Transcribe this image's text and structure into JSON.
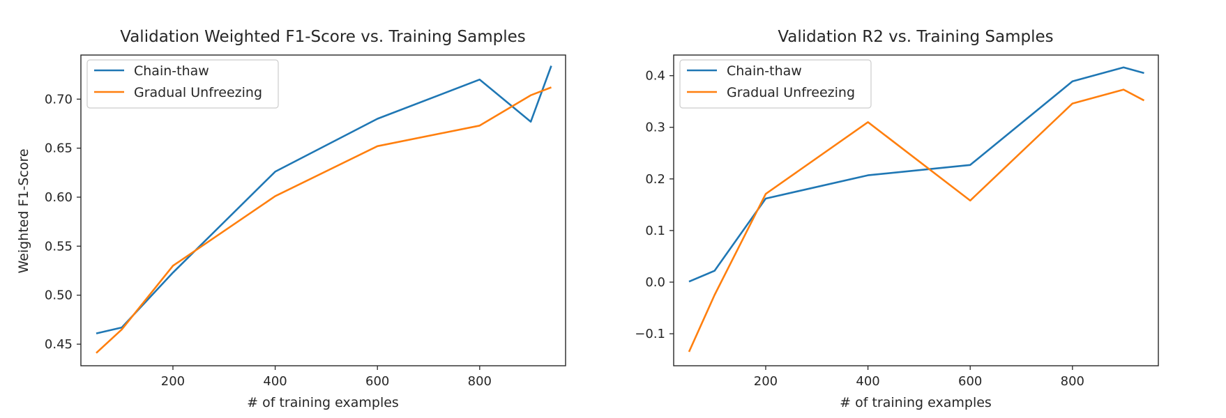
{
  "chart_data": [
    {
      "type": "line",
      "title": "Validation Weighted F1-Score vs. Training Samples",
      "xlabel": "# of training examples",
      "ylabel": "Weighted F1-Score",
      "xlim": [
        20,
        968
      ],
      "ylim": [
        0.428,
        0.745
      ],
      "xticks": [
        200,
        400,
        600,
        800
      ],
      "xtick_labels": [
        "200",
        "400",
        "600",
        "800"
      ],
      "yticks": [
        0.45,
        0.5,
        0.55,
        0.6,
        0.65,
        0.7
      ],
      "ytick_labels": [
        "0.45",
        "0.50",
        "0.55",
        "0.60",
        "0.65",
        "0.70"
      ],
      "grid": false,
      "legend_position": "top-left",
      "series": [
        {
          "name": "Chain-thaw",
          "color": "#1f77b4",
          "x": [
            50,
            100,
            200,
            400,
            600,
            800,
            900,
            940
          ],
          "values": [
            0.461,
            0.467,
            0.523,
            0.626,
            0.68,
            0.72,
            0.677,
            0.734
          ]
        },
        {
          "name": "Gradual Unfreezing",
          "color": "#ff7f0e",
          "x": [
            50,
            100,
            200,
            400,
            600,
            800,
            900,
            940
          ],
          "values": [
            0.441,
            0.465,
            0.53,
            0.601,
            0.652,
            0.673,
            0.704,
            0.712
          ]
        }
      ]
    },
    {
      "type": "line",
      "title": "Validation R2 vs. Training Samples",
      "xlabel": "# of training examples",
      "ylabel": "",
      "xlim": [
        20,
        968
      ],
      "ylim": [
        -0.162,
        0.44
      ],
      "xticks": [
        200,
        400,
        600,
        800
      ],
      "xtick_labels": [
        "200",
        "400",
        "600",
        "800"
      ],
      "yticks": [
        -0.1,
        0.0,
        0.1,
        0.2,
        0.3,
        0.4
      ],
      "ytick_labels": [
        "−0.1",
        "0.0",
        "0.1",
        "0.2",
        "0.3",
        "0.4"
      ],
      "grid": false,
      "legend_position": "top-left",
      "series": [
        {
          "name": "Chain-thaw",
          "color": "#1f77b4",
          "x": [
            50,
            100,
            200,
            400,
            600,
            800,
            900,
            940
          ],
          "values": [
            0.001,
            0.022,
            0.162,
            0.207,
            0.227,
            0.389,
            0.416,
            0.405
          ]
        },
        {
          "name": "Gradual Unfreezing",
          "color": "#ff7f0e",
          "x": [
            50,
            100,
            200,
            400,
            600,
            800,
            900,
            940
          ],
          "values": [
            -0.135,
            -0.025,
            0.171,
            0.31,
            0.158,
            0.346,
            0.373,
            0.352
          ]
        }
      ]
    }
  ]
}
